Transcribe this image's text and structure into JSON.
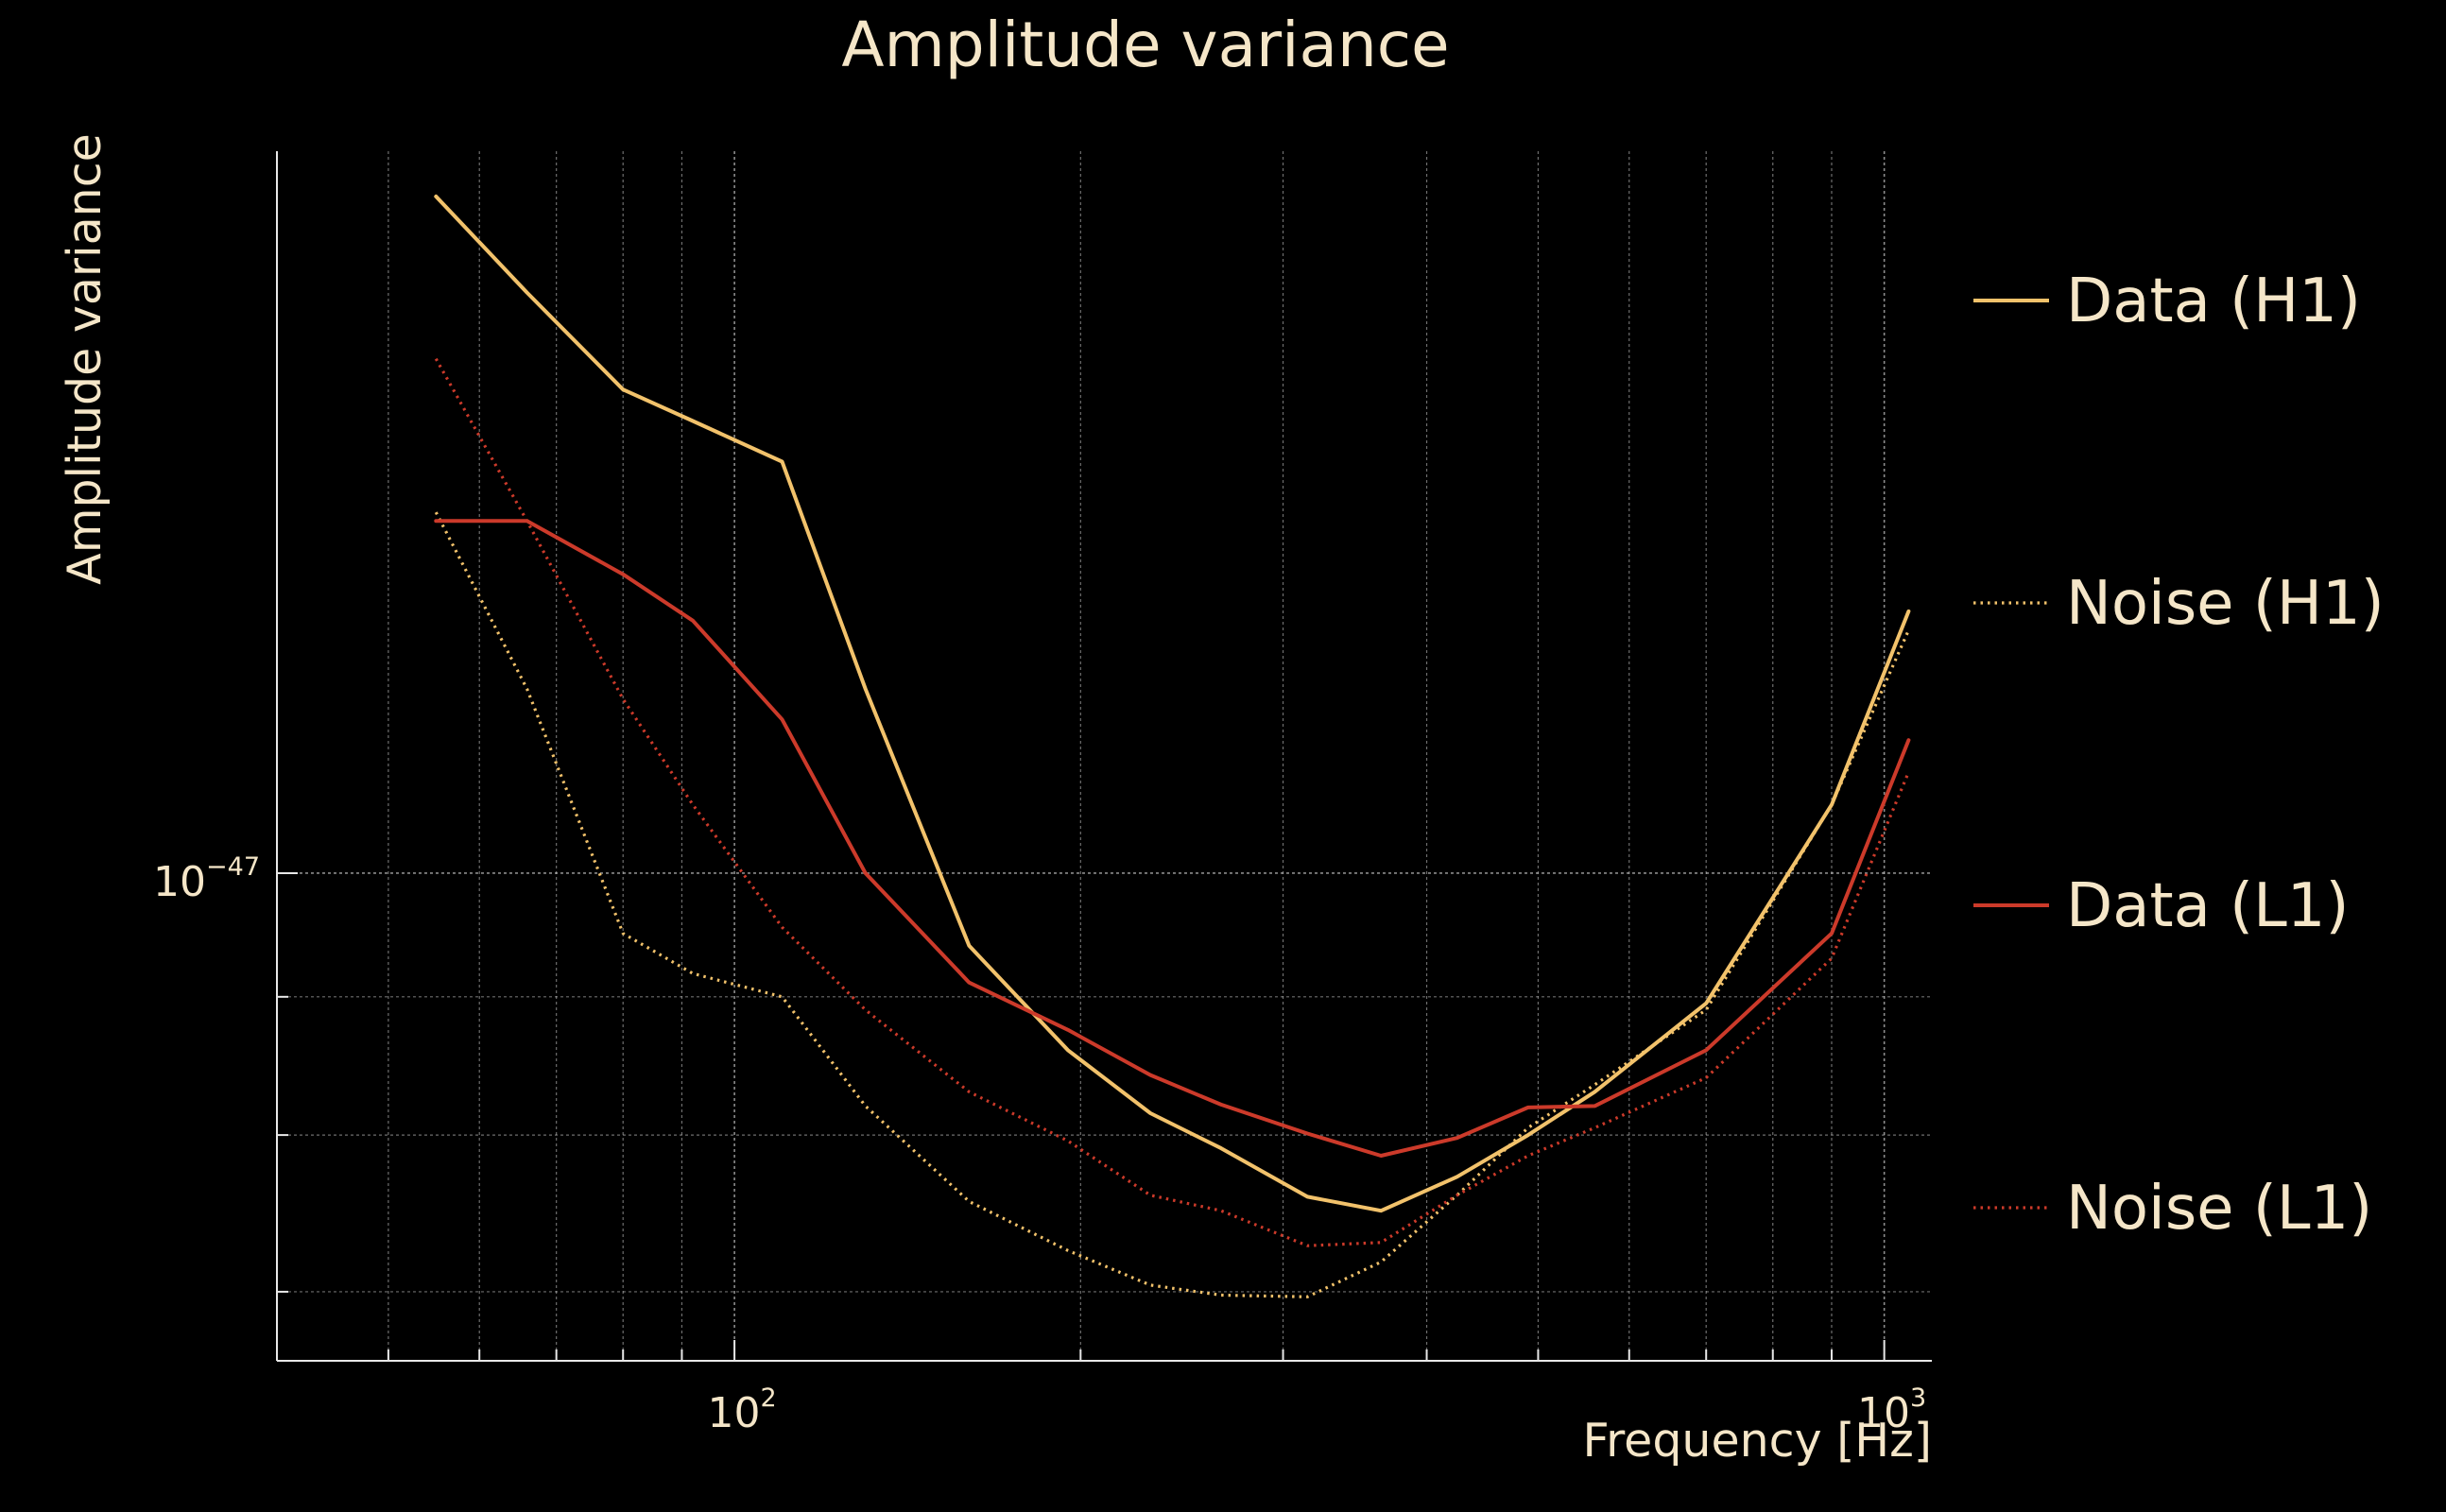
{
  "chart_data": {
    "type": "line",
    "title": "Amplitude variance",
    "xlabel": "Frequency [Hz]",
    "ylabel": "Amplitude variance",
    "xscale": "log",
    "yscale": "log",
    "xlim": [
      40,
      1100
    ],
    "ylim": [
      6.6e-48,
      1.85e-47
    ],
    "grid": true,
    "legend_position": "right",
    "x_ticks": [
      {
        "value": 100,
        "base": "10",
        "exp": "2"
      },
      {
        "value": 1000,
        "base": "10",
        "exp": "3"
      }
    ],
    "y_ticks": [
      {
        "value": 1e-47,
        "base": "10",
        "exp": "−47"
      }
    ],
    "x": [
      55,
      66,
      80,
      92,
      110,
      130,
      160,
      195,
      230,
      265,
      315,
      365,
      425,
      490,
      560,
      700,
      900,
      1050
    ],
    "series": [
      {
        "name": "Data (H1)",
        "color": "#f2c26b",
        "style": "solid",
        "values": [
          1.78e-47,
          1.64e-47,
          1.51e-47,
          1.47e-47,
          1.42e-47,
          1.17e-47,
          9.4e-48,
          8.6e-48,
          8.15e-48,
          7.91e-48,
          7.59e-48,
          7.5e-48,
          7.72e-48,
          8e-48,
          8.3e-48,
          8.95e-48,
          1.06e-47,
          1.25e-47
        ]
      },
      {
        "name": "Noise (H1)",
        "color": "#f2c26b",
        "style": "dotted",
        "values": [
          1.36e-47,
          1.17e-47,
          9.5e-48,
          9.18e-48,
          9e-48,
          8.2e-48,
          7.56e-48,
          7.25e-48,
          7.04e-48,
          6.98e-48,
          6.97e-48,
          7.18e-48,
          7.6e-48,
          8.05e-48,
          8.35e-48,
          8.9e-48,
          1.06e-47,
          1.23e-47
        ]
      },
      {
        "name": "Data (L1)",
        "color": "#cc3a2a",
        "style": "solid",
        "values": [
          1.35e-47,
          1.35e-47,
          1.29e-47,
          1.24e-47,
          1.14e-47,
          1e-47,
          9.11e-48,
          8.75e-48,
          8.42e-48,
          8.21e-48,
          8.01e-48,
          7.86e-48,
          7.98e-48,
          8.19e-48,
          8.2e-48,
          8.6e-48,
          9.5e-48,
          1.12e-47
        ]
      },
      {
        "name": "Noise (L1)",
        "color": "#cc3a2a",
        "style": "dotted",
        "values": [
          1.55e-47,
          1.35e-47,
          1.16e-47,
          1.06e-47,
          9.55e-48,
          8.9e-48,
          8.3e-48,
          7.96e-48,
          7.6e-48,
          7.5e-48,
          7.28e-48,
          7.3e-48,
          7.6e-48,
          7.86e-48,
          8.05e-48,
          8.4e-48,
          9.3e-48,
          1.09e-47
        ]
      }
    ]
  },
  "colors": {
    "background": "#000000",
    "text": "#f5e6c8",
    "grid": "#c8c8c8",
    "axis": "#e8e8e8"
  }
}
